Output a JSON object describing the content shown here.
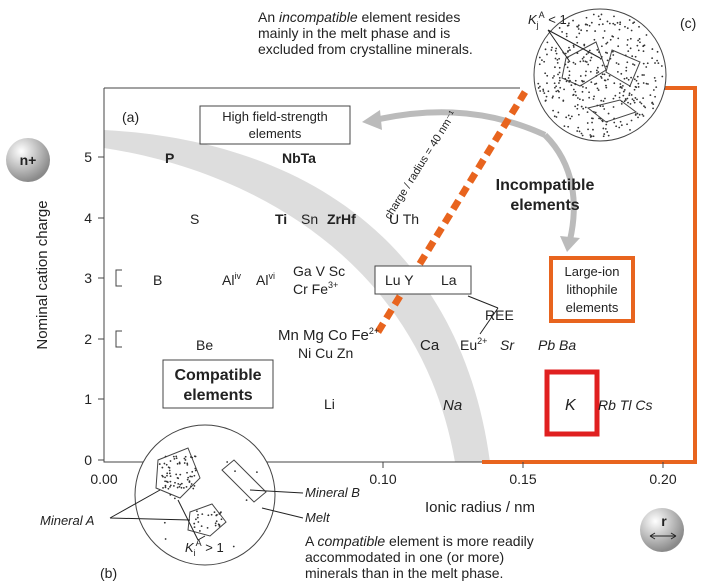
{
  "figure": {
    "panel_a": "(a)",
    "panel_b": "(b)",
    "panel_c": "(c)",
    "y_axis": {
      "symbol": "n+",
      "title": "Nominal cation charge",
      "ticks": [
        "0",
        "1",
        "2",
        "3",
        "4",
        "5"
      ]
    },
    "x_axis": {
      "symbol": "r",
      "title": "Ionic radius / nm",
      "ticks": [
        "0.00",
        "0.10",
        "0.15",
        "0.20"
      ]
    },
    "top_note": {
      "pre": "An ",
      "em": "incompatible",
      "post": " element resides",
      "line2": "mainly in the melt phase and is",
      "line3": "excluded from crystalline minerals."
    },
    "top_k": {
      "k": "K",
      "sub": "j",
      "sup": "A",
      "rest": " < 1"
    },
    "bottom_note": {
      "pre": "A ",
      "em": "compatible",
      "post": " element is more readily",
      "line2": "accommodated in one (or more)",
      "line3": "minerals than in the melt phase."
    },
    "bottom_k": {
      "k": "K",
      "sub": "i",
      "sup": "A",
      "rest": " > 1"
    },
    "mineral_a": "Mineral A",
    "mineral_b": "Mineral B",
    "melt": "Melt",
    "hfse": {
      "line1": "High field-strength",
      "line2": "elements"
    },
    "slope": "charge / radius = 40 nm⁻¹",
    "incompatible": {
      "line1": "Incompatible",
      "line2": "elements"
    },
    "compatible": {
      "line1": "Compatible",
      "line2": "elements"
    },
    "lile": {
      "line1": "Large-ion",
      "line2": "lithophile",
      "line3": "elements"
    },
    "ree": "REE",
    "elements": [
      {
        "text": "P"
      },
      {
        "text": "NbTa"
      },
      {
        "text": "S"
      },
      {
        "text": "Ti"
      },
      {
        "text": "Sn"
      },
      {
        "text": "ZrHf"
      },
      {
        "text": "U Th"
      },
      {
        "text": "B"
      },
      {
        "text": "Al",
        "sup": "iv"
      },
      {
        "text": "Al",
        "sup": "vi"
      },
      {
        "text": "Ga V Sc"
      },
      {
        "text": "Cr Fe",
        "sup": "3+"
      },
      {
        "text": "Lu Y"
      },
      {
        "text": "La"
      },
      {
        "text": "Be"
      },
      {
        "text": "Mn Mg Co Fe",
        "sup": "2+"
      },
      {
        "text": "Ni Cu Zn"
      },
      {
        "text": "Ca"
      },
      {
        "text": "Eu",
        "sup": "2+"
      },
      {
        "text": "Sr"
      },
      {
        "text": "Pb Ba"
      },
      {
        "text": "Li"
      },
      {
        "text": "Na"
      },
      {
        "text": "K"
      },
      {
        "text": "Rb Tl Cs"
      }
    ]
  }
}
